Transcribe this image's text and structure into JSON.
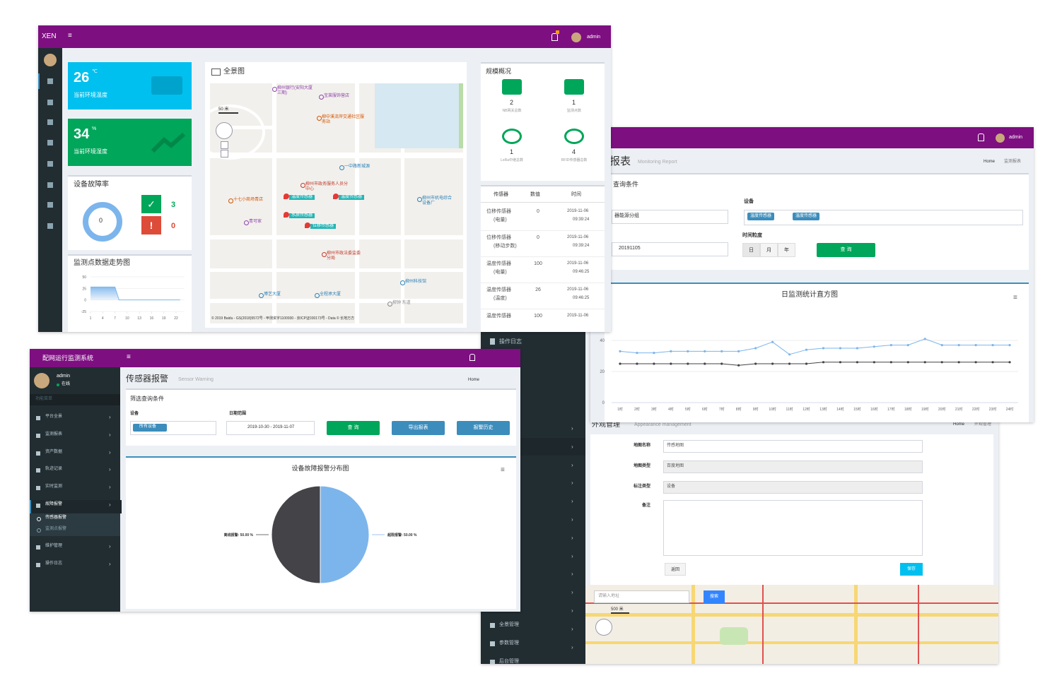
{
  "dashboard": {
    "brand": "XEN",
    "user": "admin",
    "temp_card": {
      "value": 26,
      "unit": "℃",
      "label": "当前环境温度"
    },
    "humidity_card": {
      "value": 34,
      "unit": "%",
      "label": "当前环境湿度"
    },
    "fault": {
      "title": "设备故障率",
      "rate": 0,
      "ok": 3,
      "bad": 0
    },
    "trend_chart": {
      "type": "area",
      "title": "监测点数据走势图",
      "x": [
        1,
        2,
        3,
        4,
        5,
        6,
        7,
        8,
        9,
        10,
        11,
        12,
        13,
        14,
        15,
        16,
        17,
        18,
        19,
        20,
        21,
        22,
        23
      ],
      "values": [
        28,
        28,
        28,
        28,
        28,
        28,
        28,
        0,
        0,
        0,
        0,
        0,
        0,
        0,
        0,
        0,
        0,
        0,
        0,
        0,
        0,
        0,
        0
      ],
      "color": "#7cb5ec",
      "xlim": [
        1,
        24
      ],
      "xticks": [
        1,
        4,
        7,
        10,
        13,
        16,
        19,
        22
      ],
      "ylim": [
        -25,
        50
      ],
      "yticks": [
        -25,
        0,
        25,
        50
      ],
      "grid": true
    },
    "map": {
      "title": "全景图",
      "scale": "50 米",
      "places": [
        {
          "label": "柳州银行(安阳大厦三期)",
          "color": "#8e44ad"
        },
        {
          "label": "宝莱服饰营店",
          "color": "#8e44ad"
        },
        {
          "label": "柳中溪流岸交通社区服务站",
          "color": "#d35400"
        },
        {
          "label": "一中路新城源",
          "color": "#2980b9"
        },
        {
          "label": "柳州市政务服务人员分中心",
          "color": "#c0392b"
        },
        {
          "label": "十七小商场青店",
          "color": "#d35400"
        },
        {
          "label": "青可家",
          "color": "#8e44ad"
        },
        {
          "label": "柳州市机电综合设备厂",
          "color": "#2980b9"
        },
        {
          "label": "柳州市政法委监委分局",
          "color": "#c0392b"
        },
        {
          "label": "博艺大厦",
          "color": "#2980b9"
        },
        {
          "label": "全程承大厦",
          "color": "#2980b9"
        },
        {
          "label": "柳州科技馆",
          "color": "#2980b9"
        },
        {
          "label": "柳钟 东道",
          "color": "#888888"
        }
      ],
      "sensor_tags": [
        "温度传感器",
        "温度传感器",
        "水质传感器",
        "位移传感器"
      ],
      "copyright": "© 2019 Baidu - GS(2018)5572号 - 甲测资字1100930 - 京ICP证030173号 - Data © 长地万方"
    },
    "scale": {
      "title": "规模概况",
      "items": [
        {
          "count": 2,
          "label": "NB网关总数"
        },
        {
          "count": 1,
          "label": "监测点数"
        },
        {
          "count": 1,
          "label": "LoRa中继总数"
        },
        {
          "count": 4,
          "label": "RFID传感器总数"
        }
      ]
    },
    "sensor_table": {
      "headers": [
        "传感器",
        "数值",
        "时间"
      ],
      "rows": [
        {
          "sensor": "位移传感器",
          "detail": "(电量)",
          "value": 0,
          "date": "2019-11-06",
          "time": "09:39:24"
        },
        {
          "sensor": "位移传感器",
          "detail": "(移动步数)",
          "value": 0,
          "date": "2019-11-06",
          "time": "09:39:24"
        },
        {
          "sensor": "温度传感器",
          "detail": "(电量)",
          "value": 100,
          "date": "2019-11-06",
          "time": "09:46:25"
        },
        {
          "sensor": "温度传感器",
          "detail": "(温度)",
          "value": 26,
          "date": "2019-11-06",
          "time": "09:46:25"
        },
        {
          "sensor": "温度传感器",
          "value": 100,
          "date": "2019-11-06"
        }
      ]
    }
  },
  "report": {
    "user": "admin",
    "title": "报表",
    "subtitle": "Monitoring Report",
    "breadcrumb": [
      "Home",
      "监测报表"
    ],
    "query_title": "查询条件",
    "group_value": "器能源分组",
    "date_value": "20191105",
    "device_label": "设备",
    "device_tags": [
      "温度传感器",
      "温度传感器"
    ],
    "granularity_label": "时间粒度",
    "granularity": [
      "日",
      "月",
      "年"
    ],
    "query_button": "查 询",
    "chart": {
      "type": "line",
      "title": "日监测统计直方图",
      "categories": [
        "1时",
        "2时",
        "3时",
        "4时",
        "5时",
        "6时",
        "7时",
        "8时",
        "9时",
        "10时",
        "11时",
        "12时",
        "13时",
        "14时",
        "15时",
        "16时",
        "17时",
        "18时",
        "19时",
        "20时",
        "21时",
        "22时",
        "23时",
        "24时"
      ],
      "series": [
        {
          "color": "#7cb5ec",
          "values": [
            33,
            32,
            32,
            33,
            33,
            33,
            33,
            33,
            35,
            39,
            31,
            34,
            35,
            35,
            35,
            36,
            37,
            37,
            41,
            37,
            37,
            37,
            37,
            37
          ]
        },
        {
          "color": "#434348",
          "values": [
            25,
            25,
            25,
            25,
            25,
            25,
            25,
            24,
            25,
            25,
            25,
            25,
            26,
            26,
            26,
            26,
            26,
            26,
            26,
            26,
            26,
            26,
            26,
            26
          ]
        }
      ],
      "ylim": [
        0,
        45
      ],
      "yticks": [
        0,
        20,
        40
      ],
      "grid": true
    }
  },
  "warning": {
    "system": "配网运行监测系统",
    "user": "admin",
    "status": "在线",
    "nav_header": "功能菜单",
    "menu": [
      "平台全景",
      "监测报表",
      "资产数据",
      "轨迹记录",
      "实时监测",
      "故障报警",
      "维护管理",
      "操作日志"
    ],
    "submenu": [
      "传感器报警",
      "监测点报警"
    ],
    "title": "传感器报警",
    "subtitle": "Sensor Warning",
    "home": "Home",
    "filter_title": "筛选查询条件",
    "device_label": "设备",
    "device_tag": "所有设备",
    "date_label": "日期范围",
    "date_value": "2019-10-30 - 2019-11-07",
    "buttons": [
      "查 询",
      "导出报表",
      "报警历史"
    ],
    "chart": {
      "type": "pie",
      "title": "设备故障报警分布图",
      "categories": [
        "超限报警",
        "离线报警"
      ],
      "values": [
        50,
        50
      ],
      "value_labels": [
        "超限报警: 50.00 %",
        "离线报警: 50.00 %"
      ],
      "colors": [
        "#7cb5ec",
        "#434348"
      ]
    }
  },
  "appearance": {
    "menu_top": "操作日志",
    "menu_bottom": [
      "全景管理",
      "参数管理",
      "后台管理"
    ],
    "title": "外观管理",
    "subtitle": "Appearance management",
    "breadcrumb": [
      "Home",
      "外观管理"
    ],
    "fields": [
      {
        "label": "地图名称",
        "value": "传感地图"
      },
      {
        "label": "地图类型",
        "value": "百度地图"
      },
      {
        "label": "标注类型",
        "value": "设备"
      },
      {
        "label": "备注"
      }
    ],
    "buttons": [
      "返回",
      "保存"
    ],
    "map_search_placeholder": "请输入地址",
    "map_search_button": "搜索",
    "map_scale": "500 米"
  }
}
